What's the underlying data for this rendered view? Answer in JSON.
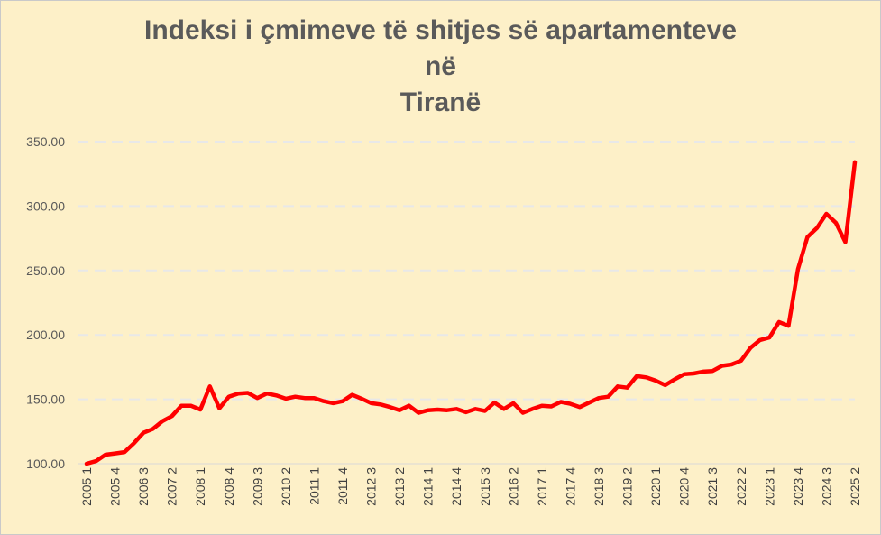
{
  "chart_data": {
    "type": "line",
    "title_lines": [
      "Indeksi i çmimeve të shitjes së apartamenteve",
      "në",
      "Tiranë"
    ],
    "ylim": [
      100,
      350
    ],
    "yticks": [
      "100.00",
      "150.00",
      "200.00",
      "250.00",
      "300.00",
      "350.00"
    ],
    "grid": true,
    "legend": "none",
    "x_tick_labels": [
      "2005 1",
      "2005 4",
      "2006 3",
      "2007 2",
      "2008 1",
      "2008 4",
      "2009 3",
      "2010 2",
      "2011 1",
      "2011 4",
      "2012 3",
      "2013 2",
      "2014 1",
      "2014 4",
      "2015 3",
      "2016 2",
      "2017 1",
      "2017 4",
      "2018 3",
      "2019 2",
      "2020 1",
      "2020 4",
      "2021 3",
      "2022 2",
      "2023 1",
      "2023 4",
      "2024 3",
      "2025 2"
    ],
    "series": [
      {
        "color": "#ff0000",
        "values": [
          100.0,
          102.0,
          107.0,
          108.0,
          109.0,
          116.0,
          124.0,
          127.0,
          133.0,
          137.0,
          145.0,
          145.0,
          142.0,
          160.0,
          143.0,
          152.0,
          154.5,
          155.0,
          151.0,
          154.5,
          153.0,
          150.5,
          152.0,
          151.0,
          151.0,
          148.5,
          147.0,
          148.5,
          153.5,
          150.5,
          147.0,
          146.0,
          144.0,
          141.5,
          145.0,
          139.5,
          141.5,
          142.0,
          141.5,
          142.5,
          140.0,
          142.5,
          141.0,
          147.5,
          142.5,
          147.0,
          139.5,
          142.5,
          145.0,
          144.5,
          148.0,
          146.5,
          144.0,
          147.5,
          151.0,
          152.0,
          160.0,
          159.0,
          168.0,
          167.0,
          164.5,
          161.0,
          165.5,
          169.5,
          170.0,
          171.5,
          172.0,
          176.0,
          177.0,
          180.0,
          190.0,
          196.0,
          198.0,
          210.0,
          207.0,
          251.0,
          276.0,
          283.0,
          294.0,
          287.0,
          272.0,
          334.0
        ]
      }
    ]
  }
}
